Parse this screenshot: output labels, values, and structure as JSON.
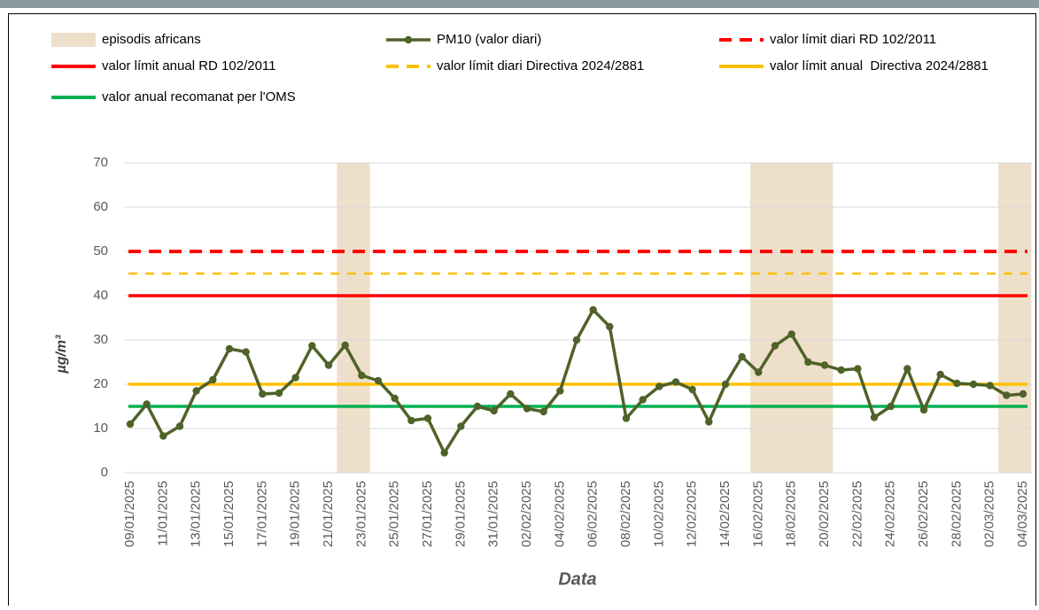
{
  "chart_data": {
    "type": "line",
    "x_label": "Data",
    "y_label": "µg/m³",
    "categories": [
      "09/01/2025",
      null,
      "11/01/2025",
      null,
      "13/01/2025",
      null,
      "15/01/2025",
      null,
      "17/01/2025",
      null,
      "19/01/2025",
      null,
      "21/01/2025",
      null,
      "23/01/2025",
      null,
      "25/01/2025",
      null,
      "27/01/2025",
      null,
      "29/01/2025",
      null,
      "31/01/2025",
      null,
      "02/02/2025",
      null,
      "04/02/2025",
      null,
      "06/02/2025",
      null,
      "08/02/2025",
      null,
      "10/02/2025",
      null,
      "12/02/2025",
      null,
      "14/02/2025",
      null,
      "16/02/2025",
      null,
      "18/02/2025",
      null,
      "20/02/2025",
      null,
      "22/02/2025",
      null,
      "24/02/2025",
      null,
      "26/02/2025",
      null,
      "28/02/2025",
      null,
      "02/03/2025",
      null,
      "04/03/2025"
    ],
    "series": [
      {
        "name": "PM10 (valor diari)",
        "color": "#4f6228",
        "values": [
          11,
          15.5,
          8.3,
          10.5,
          18.5,
          21,
          28,
          27.3,
          17.8,
          18,
          21.5,
          28.7,
          24.3,
          28.8,
          22,
          20.8,
          16.8,
          11.8,
          12.3,
          4.5,
          10.5,
          15,
          14,
          17.8,
          14.5,
          13.8,
          18.5,
          30,
          36.8,
          33,
          12.3,
          16.5,
          19.5,
          20.5,
          18.8,
          11.5,
          20,
          26.2,
          22.7,
          28.7,
          31.3,
          25,
          24.3,
          23.2,
          23.5,
          12.5,
          15,
          23.5,
          14.2,
          22.2,
          20.2,
          20,
          19.7,
          17.5,
          17.8
        ]
      }
    ],
    "bands": {
      "name": "episodis africans",
      "color": "#eedfca",
      "spans": [
        [
          12.5,
          14.5
        ],
        [
          37.5,
          42.5
        ],
        [
          52.5,
          54.5
        ]
      ]
    },
    "reference_lines": [
      {
        "name": "valor límit diari RD 102/2011",
        "value": 50,
        "color": "#ff0000",
        "dashed": true
      },
      {
        "name": "valor límit anual RD 102/2011",
        "value": 40,
        "color": "#ff0000",
        "dashed": false
      },
      {
        "name": "valor límit diari Directiva 2024/2881",
        "value": 45,
        "color": "#ffc000",
        "dashed": true
      },
      {
        "name": "valor límit anual  Directiva 2024/2881",
        "value": 20,
        "color": "#ffc000",
        "dashed": false
      },
      {
        "name": "valor anual recomanat per l'OMS",
        "value": 15,
        "color": "#00b050",
        "dashed": false
      }
    ],
    "ylim": [
      0,
      70
    ],
    "yticks": [
      0,
      10,
      20,
      30,
      40,
      50,
      60,
      70
    ],
    "grid": true
  }
}
